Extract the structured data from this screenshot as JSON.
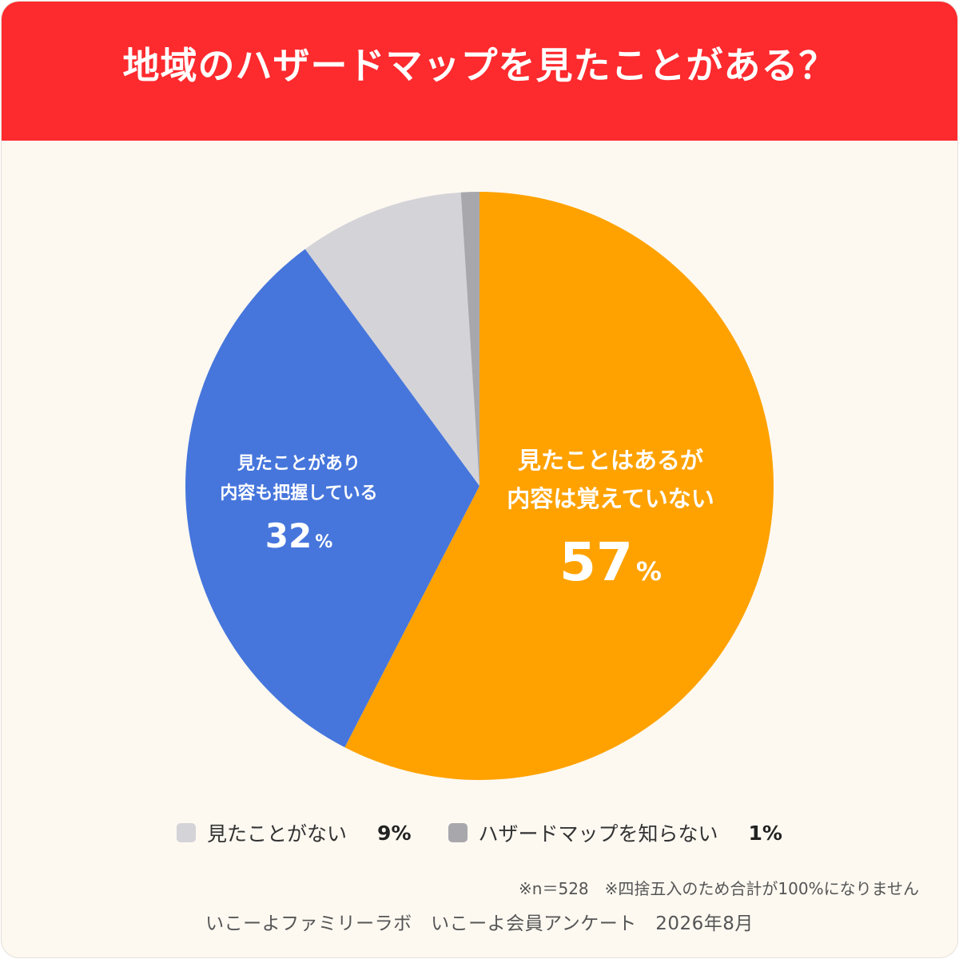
{
  "title": "地域のハザードマップを見たことがある？",
  "chart_data": {
    "type": "pie",
    "title": "地域のハザードマップを見たことがある？",
    "slices": [
      {
        "label": "見たことはあるが内容は覚えていない",
        "label_lines": [
          "見たことはあるが",
          "内容は覚えていない"
        ],
        "value": 57,
        "display_value": "57",
        "color": "#ffa200"
      },
      {
        "label": "見たことがあり内容も把握している",
        "label_lines": [
          "見たことがあり",
          "内容も把握している"
        ],
        "value": 32,
        "display_value": "32",
        "color": "#4676dc"
      },
      {
        "label": "見たことがない",
        "value": 9,
        "display_value": "9%",
        "color": "#d4d3d8"
      },
      {
        "label": "ハザードマップを知らない",
        "value": 1,
        "display_value": "1%",
        "color": "#a8a7ac"
      }
    ],
    "percent_sign": "%",
    "start": "top",
    "direction": "clockwise"
  },
  "legend": [
    {
      "label": "見たことがない",
      "value": "9%",
      "color": "#d4d3d8"
    },
    {
      "label": "ハザードマップを知らない",
      "value": "1%",
      "color": "#a8a7ac"
    }
  ],
  "note": "※n＝528　※四捨五入のため合計が100%になりません",
  "source": "いこーよファミリーラボ　いこーよ会員アンケート　2026年8月"
}
